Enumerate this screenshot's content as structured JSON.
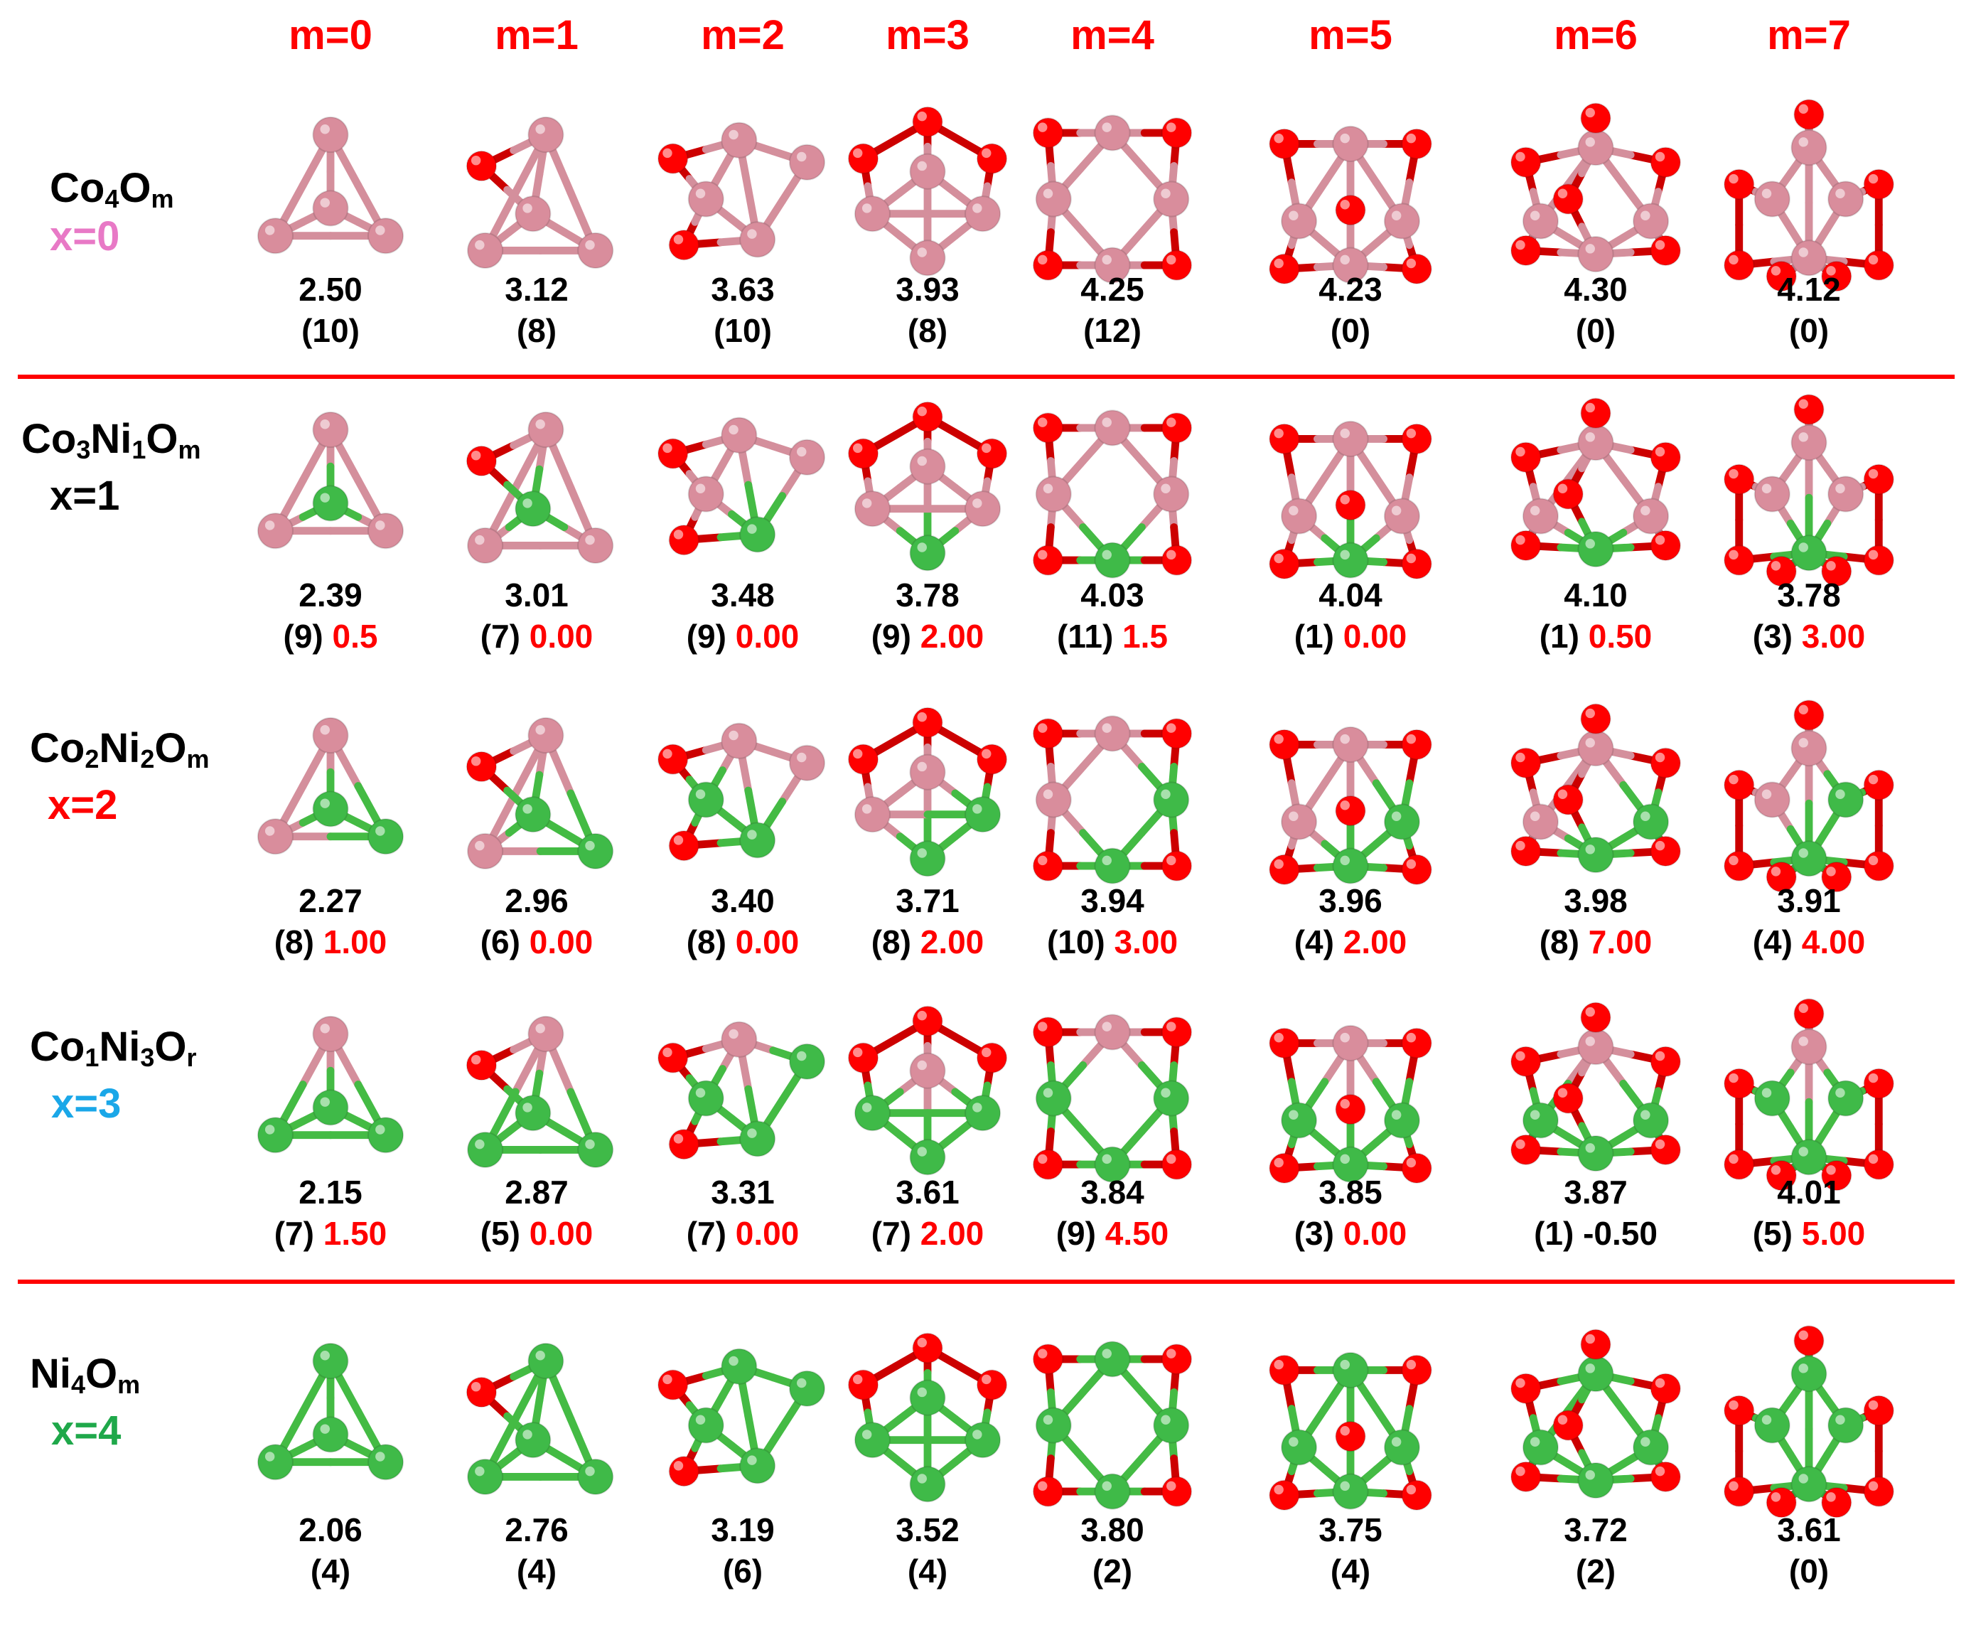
{
  "colors": {
    "Co": "#d98d9c",
    "Ni": "#3fba48",
    "O": "#ff0000",
    "bond_Co": "#d48f9c",
    "bond_Ni": "#44bb44",
    "header": "#ff0000",
    "divider": "#ff0000"
  },
  "columns": [
    "m=0",
    "m=1",
    "m=2",
    "m=3",
    "m=4",
    "m=5",
    "m=6",
    "m=7"
  ],
  "rows": [
    {
      "formula": {
        "a": "Co",
        "a_sub": "4",
        "b": "O",
        "b_sub": "m",
        "c": "",
        "c_sub": ""
      },
      "x_label": "x=0",
      "x_color": "#e879c6",
      "cells": [
        {
          "value": "2.50",
          "count": "(10)",
          "mag": ""
        },
        {
          "value": "3.12",
          "count": "(8)",
          "mag": ""
        },
        {
          "value": "3.63",
          "count": "(10)",
          "mag": ""
        },
        {
          "value": "3.93",
          "count": "(8)",
          "mag": ""
        },
        {
          "value": "4.25",
          "count": "(12)",
          "mag": ""
        },
        {
          "value": "4.23",
          "count": "(0)",
          "mag": ""
        },
        {
          "value": "4.30",
          "count": "(0)",
          "mag": ""
        },
        {
          "value": "4.12",
          "count": "(0)",
          "mag": ""
        }
      ]
    },
    {
      "formula": {
        "a": "Co",
        "a_sub": "3",
        "b": "Ni",
        "b_sub": "1",
        "c": "O",
        "c_sub": "m"
      },
      "x_label": "x=1",
      "x_color": "#000000",
      "cells": [
        {
          "value": "2.39",
          "count": "(9)",
          "mag": "0.5"
        },
        {
          "value": "3.01",
          "count": "(7)",
          "mag": "0.00"
        },
        {
          "value": "3.48",
          "count": "(9)",
          "mag": "0.00"
        },
        {
          "value": "3.78",
          "count": "(9)",
          "mag": "2.00"
        },
        {
          "value": "4.03",
          "count": "(11)",
          "mag": "1.5"
        },
        {
          "value": "4.04",
          "count": "(1)",
          "mag": "0.00"
        },
        {
          "value": "4.10",
          "count": "(1)",
          "mag": "0.50"
        },
        {
          "value": "3.78",
          "count": "(3)",
          "mag": "3.00"
        }
      ]
    },
    {
      "formula": {
        "a": "Co",
        "a_sub": "2",
        "b": "Ni",
        "b_sub": "2",
        "c": "O",
        "c_sub": "m"
      },
      "x_label": "x=2",
      "x_color": "#ff0000",
      "cells": [
        {
          "value": "2.27",
          "count": "(8)",
          "mag": "1.00"
        },
        {
          "value": "2.96",
          "count": "(6)",
          "mag": "0.00"
        },
        {
          "value": "3.40",
          "count": "(8)",
          "mag": "0.00"
        },
        {
          "value": "3.71",
          "count": "(8)",
          "mag": "2.00"
        },
        {
          "value": "3.94",
          "count": "(10)",
          "mag": "3.00"
        },
        {
          "value": "3.96",
          "count": "(4)",
          "mag": "2.00"
        },
        {
          "value": "3.98",
          "count": "(8)",
          "mag": "7.00"
        },
        {
          "value": "3.91",
          "count": "(4)",
          "mag": "4.00"
        }
      ]
    },
    {
      "formula": {
        "a": "Co",
        "a_sub": "1",
        "b": "Ni",
        "b_sub": "3",
        "c": "O",
        "c_sub": "r"
      },
      "x_label": "x=3",
      "x_color": "#1aa7e8",
      "cells": [
        {
          "value": "2.15",
          "count": "(7)",
          "mag": "1.50"
        },
        {
          "value": "2.87",
          "count": "(5)",
          "mag": "0.00"
        },
        {
          "value": "3.31",
          "count": "(7)",
          "mag": "0.00"
        },
        {
          "value": "3.61",
          "count": "(7)",
          "mag": "2.00"
        },
        {
          "value": "3.84",
          "count": "(9)",
          "mag": "4.50"
        },
        {
          "value": "3.85",
          "count": "(3)",
          "mag": "0.00"
        },
        {
          "value": "3.87",
          "count": "(1) -0.50",
          "mag": ""
        },
        {
          "value": "4.01",
          "count": "(5)",
          "mag": "5.00"
        }
      ]
    },
    {
      "formula": {
        "a": "Ni",
        "a_sub": "4",
        "b": "O",
        "b_sub": "m",
        "c": "",
        "c_sub": ""
      },
      "x_label": "x=4",
      "x_color": "#1fa84a",
      "cells": [
        {
          "value": "2.06",
          "count": "(4)",
          "mag": ""
        },
        {
          "value": "2.76",
          "count": "(4)",
          "mag": ""
        },
        {
          "value": "3.19",
          "count": "(6)",
          "mag": ""
        },
        {
          "value": "3.52",
          "count": "(4)",
          "mag": ""
        },
        {
          "value": "3.80",
          "count": "(2)",
          "mag": ""
        },
        {
          "value": "3.75",
          "count": "(4)",
          "mag": ""
        },
        {
          "value": "3.72",
          "count": "(2)",
          "mag": ""
        },
        {
          "value": "3.61",
          "count": "(0)",
          "mag": ""
        }
      ]
    }
  ]
}
